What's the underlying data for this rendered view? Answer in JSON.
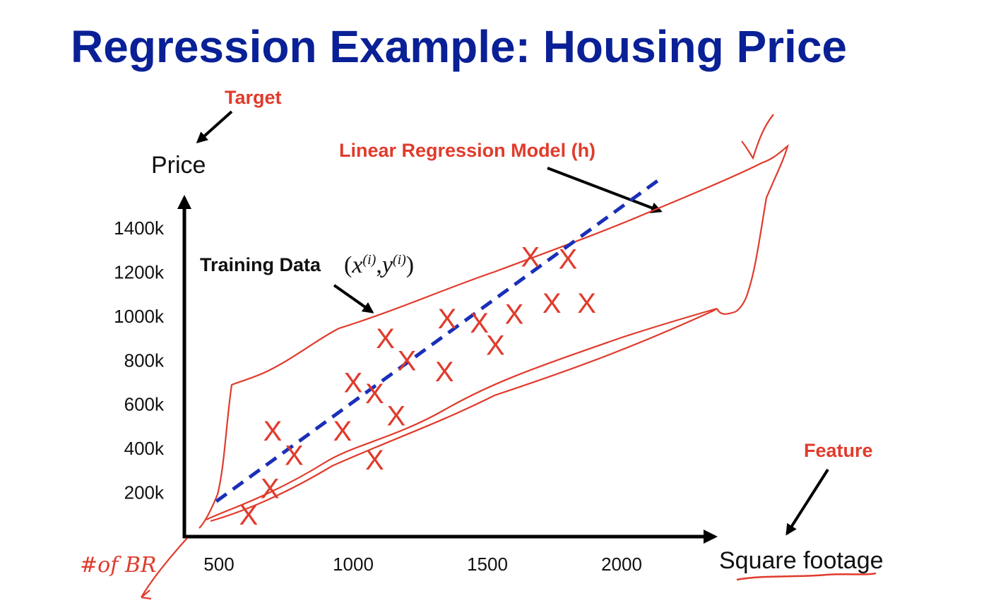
{
  "slide": {
    "title": "Regression Example: Housing Price"
  },
  "annotations": {
    "target": "Target",
    "feature": "Feature",
    "model": "Linear Regression Model (h)",
    "training_data": "Training Data",
    "training_math_x": "x",
    "training_math_i": "(i)",
    "training_math_y": "y",
    "training_open": "(",
    "training_comma": ",",
    "training_close": ")",
    "handwriting": "#of BR"
  },
  "colors": {
    "title": "#0a2096",
    "accent_red": "#e03b2c",
    "fit_line": "#1a2fb8",
    "axis": "#000000"
  },
  "chart_data": {
    "type": "scatter",
    "xlabel": "Square footage",
    "ylabel": "Price",
    "x_ticks": [
      500,
      1000,
      1500,
      2000
    ],
    "x_tick_labels": [
      "500",
      "1000",
      "1500",
      "2000"
    ],
    "y_ticks": [
      200,
      400,
      600,
      800,
      1000,
      1200,
      1400
    ],
    "y_tick_labels": [
      "200k",
      "400k",
      "600k",
      "800k",
      "1000k",
      "1200k",
      "1400k"
    ],
    "xlim": [
      400,
      2200
    ],
    "ylim": [
      0,
      1550
    ],
    "marker": "X",
    "series": [
      {
        "points": [
          [
            610,
            100
          ],
          [
            690,
            220
          ],
          [
            700,
            480
          ],
          [
            780,
            370
          ],
          [
            960,
            480
          ],
          [
            1080,
            350
          ],
          [
            1080,
            650
          ],
          [
            1000,
            700
          ],
          [
            1160,
            550
          ],
          [
            1120,
            900
          ],
          [
            1200,
            800
          ],
          [
            1340,
            750
          ],
          [
            1350,
            990
          ],
          [
            1470,
            970
          ],
          [
            1530,
            870
          ],
          [
            1600,
            1010
          ],
          [
            1660,
            1270
          ],
          [
            1740,
            1060
          ],
          [
            1800,
            1260
          ],
          [
            1870,
            1060
          ]
        ]
      },
      {
        "type": "line",
        "style": "dashed",
        "points": [
          [
            490,
            160
          ],
          [
            2140,
            1620
          ]
        ]
      }
    ]
  }
}
